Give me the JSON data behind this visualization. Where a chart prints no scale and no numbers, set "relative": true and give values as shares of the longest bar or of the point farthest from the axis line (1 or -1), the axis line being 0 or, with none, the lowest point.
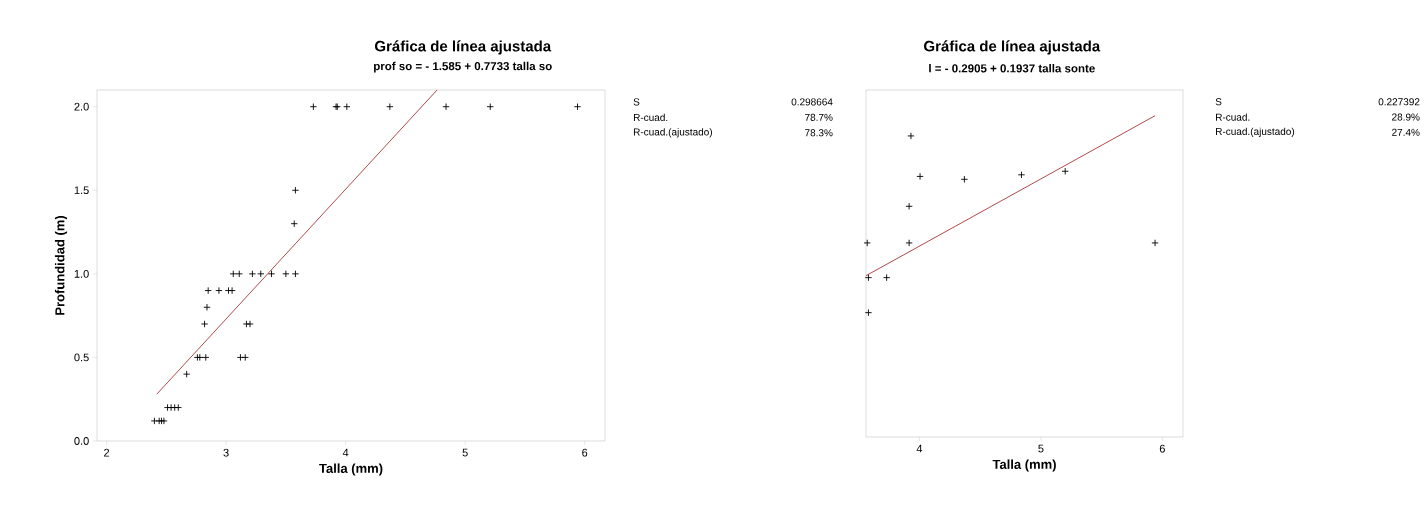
{
  "chart_data": [
    {
      "type": "scatter",
      "title": "Gráfica de línea ajustada",
      "subtitle": "prof so = - 1.585 + 0.7733 talla so",
      "xlabel": "Talla (mm)",
      "ylabel": "Profundidad (m)",
      "xlim": [
        1.92,
        6.17
      ],
      "ylim": [
        0,
        2.1
      ],
      "xticks": [
        2,
        3,
        4,
        5,
        6
      ],
      "yticks": [
        {
          "value": 0,
          "label": "0.0"
        },
        {
          "value": 0.5,
          "label": "0.5"
        },
        {
          "value": 1,
          "label": "1.0"
        },
        {
          "value": 1.5,
          "label": "1.5"
        },
        {
          "value": 2,
          "label": "2.0"
        }
      ],
      "series": [
        {
          "type": "scatter",
          "color": "#000000",
          "marker": "cross",
          "x": [
            3.73,
            3.92,
            3.93,
            4.01,
            4.37,
            4.84,
            5.21,
            5.94,
            3.58,
            3.57,
            3.06,
            3.11,
            3.22,
            3.29,
            3.38,
            3.5,
            3.58,
            2.85,
            2.94,
            3.02,
            3.05,
            2.84,
            2.82,
            3.17,
            3.2,
            2.76,
            2.78,
            2.83,
            3.12,
            3.16,
            2.67,
            2.51,
            2.54,
            2.57,
            2.6,
            2.4,
            2.44,
            2.46,
            2.48
          ],
          "values": [
            2,
            2,
            2,
            2,
            2,
            2,
            2,
            2,
            1.5,
            1.3,
            1,
            1,
            1,
            1,
            1,
            1,
            1,
            0.9,
            0.9,
            0.9,
            0.9,
            0.8,
            0.7,
            0.7,
            0.7,
            0.5,
            0.5,
            0.5,
            0.5,
            0.5,
            0.4,
            0.2,
            0.2,
            0.2,
            0.2,
            0.12,
            0.12,
            0.12,
            0.12
          ]
        },
        {
          "type": "line",
          "color": "#a01c1c",
          "marker": "none",
          "x": [
            2.42,
            4.765
          ],
          "values": [
            0.28,
            2.1
          ]
        }
      ],
      "annotations": [
        "S",
        "0.298664",
        "R-cuad.",
        "78.7%",
        "R-cuad.(ajustado)",
        "78.3%"
      ],
      "tick_labels": "xy"
    },
    {
      "type": "scatter",
      "title": "Gráfica de línea ajustada",
      "subtitle": "l = - 0.2905 + 0.1937 talla sonte",
      "xlabel": "Talla (mm)",
      "relative": true,
      "tick_labels": "x",
      "xlim": [
        3.56,
        6.17
      ],
      "xticks": [
        4,
        5,
        6
      ],
      "series": [
        {
          "type": "scatter",
          "color": "#000000",
          "marker": "cross",
          "x": [
            3.93,
            4.005,
            4.37,
            4.84,
            5.2,
            3.915,
            3.915,
            5.94,
            3.57,
            3.58,
            3.73,
            3.58
          ],
          "values": [
            0.937,
            0.811,
            0.802,
            0.816,
            0.827,
            0.718,
            0.604,
            0.604,
            0.604,
            0.496,
            0.496,
            0.387
          ]
        },
        {
          "type": "line",
          "color": "#a01c1c",
          "marker": "none",
          "x": [
            3.56,
            5.94
          ],
          "values": [
            0.502,
            1
          ]
        }
      ],
      "annotations": [
        "S",
        "0.227392",
        "R-cuad.",
        "28.9%",
        "R-cuad.(ajustado)",
        "27.4%"
      ]
    }
  ]
}
